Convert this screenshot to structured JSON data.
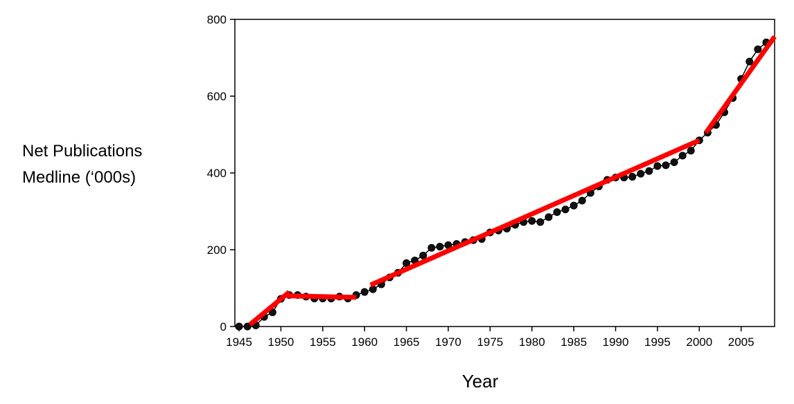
{
  "chart_data": {
    "type": "line",
    "title": "",
    "xlabel": "Year",
    "ylabel_lines": [
      "Net Publications",
      "Medline (‘000s)"
    ],
    "xlim": [
      1944.5,
      2009
    ],
    "ylim": [
      0,
      800
    ],
    "x_ticks": [
      1945,
      1950,
      1955,
      1960,
      1965,
      1970,
      1975,
      1980,
      1985,
      1990,
      1995,
      2000,
      2005
    ],
    "y_ticks": [
      0,
      200,
      400,
      600,
      800
    ],
    "grid": false,
    "legend": "none",
    "series": [
      {
        "style": "black line with circular markers",
        "color": "#000000",
        "points": [
          [
            1945,
            0
          ],
          [
            1946,
            0
          ],
          [
            1947,
            3
          ],
          [
            1948,
            25
          ],
          [
            1949,
            37
          ],
          [
            1950,
            72
          ],
          [
            1951,
            82
          ],
          [
            1952,
            82
          ],
          [
            1953,
            78
          ],
          [
            1954,
            73
          ],
          [
            1955,
            73
          ],
          [
            1956,
            73
          ],
          [
            1957,
            78
          ],
          [
            1958,
            73
          ],
          [
            1959,
            82
          ],
          [
            1960,
            90
          ],
          [
            1961,
            97
          ],
          [
            1962,
            110
          ],
          [
            1963,
            128
          ],
          [
            1964,
            140
          ],
          [
            1965,
            165
          ],
          [
            1966,
            172
          ],
          [
            1967,
            185
          ],
          [
            1968,
            205
          ],
          [
            1969,
            208
          ],
          [
            1970,
            212
          ],
          [
            1971,
            215
          ],
          [
            1972,
            220
          ],
          [
            1973,
            225
          ],
          [
            1974,
            228
          ],
          [
            1975,
            245
          ],
          [
            1976,
            250
          ],
          [
            1977,
            255
          ],
          [
            1978,
            265
          ],
          [
            1979,
            272
          ],
          [
            1980,
            275
          ],
          [
            1981,
            272
          ],
          [
            1982,
            285
          ],
          [
            1983,
            298
          ],
          [
            1984,
            305
          ],
          [
            1985,
            315
          ],
          [
            1986,
            328
          ],
          [
            1987,
            348
          ],
          [
            1988,
            365
          ],
          [
            1989,
            382
          ],
          [
            1990,
            388
          ],
          [
            1991,
            388
          ],
          [
            1992,
            390
          ],
          [
            1993,
            398
          ],
          [
            1994,
            405
          ],
          [
            1995,
            418
          ],
          [
            1996,
            420
          ],
          [
            1997,
            428
          ],
          [
            1998,
            445
          ],
          [
            1999,
            458
          ],
          [
            2000,
            485
          ],
          [
            2001,
            505
          ],
          [
            2002,
            525
          ],
          [
            2003,
            558
          ],
          [
            2004,
            595
          ],
          [
            2005,
            645
          ],
          [
            2006,
            690
          ],
          [
            2007,
            722
          ],
          [
            2008,
            740
          ]
        ]
      }
    ],
    "trend_segments": {
      "color": "#ff0000",
      "segments": [
        [
          [
            1946.3,
            5
          ],
          [
            1951,
            90
          ]
        ],
        [
          [
            1950.7,
            80
          ],
          [
            1959,
            76
          ]
        ],
        [
          [
            1960.7,
            108
          ],
          [
            2000,
            485
          ]
        ],
        [
          [
            2000.8,
            505
          ],
          [
            2009,
            755
          ]
        ]
      ]
    }
  }
}
